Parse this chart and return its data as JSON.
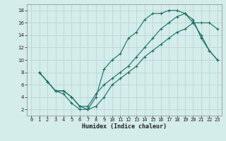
{
  "xlabel": "Humidex (Indice chaleur)",
  "bg_color": "#d4ecea",
  "grid_color": "#b8d8d5",
  "line_color": "#1a6e62",
  "xlim": [
    -0.5,
    23.5
  ],
  "ylim": [
    1,
    19
  ],
  "xticks": [
    0,
    1,
    2,
    3,
    4,
    5,
    6,
    7,
    8,
    9,
    10,
    11,
    12,
    13,
    14,
    15,
    16,
    17,
    18,
    19,
    20,
    21,
    22,
    23
  ],
  "yticks": [
    2,
    4,
    6,
    8,
    10,
    12,
    14,
    16,
    18
  ],
  "curve1_x": [
    1,
    2,
    3,
    4,
    5,
    6,
    7,
    8,
    9,
    10,
    11,
    12,
    13,
    14,
    15,
    16,
    17,
    18,
    19,
    20,
    21,
    22,
    23
  ],
  "curve1_y": [
    8,
    6.5,
    5,
    4.5,
    3,
    2,
    2,
    4,
    8.5,
    10,
    11,
    13.5,
    14.5,
    16.5,
    17.5,
    17.5,
    18,
    18,
    17.5,
    16,
    14,
    11.5,
    10
  ],
  "curve2_x": [
    1,
    2,
    3,
    4,
    5,
    6,
    7,
    8,
    9,
    10,
    11,
    12,
    13,
    14,
    15,
    16,
    17,
    18,
    19,
    20,
    21,
    22,
    23
  ],
  "curve2_y": [
    8,
    6.5,
    5,
    5,
    4,
    2.5,
    2,
    2.5,
    4,
    6,
    7,
    8,
    9,
    10.5,
    11.5,
    12.5,
    13.5,
    14.5,
    15,
    16,
    16,
    16,
    15
  ],
  "curve3_x": [
    1,
    2,
    3,
    4,
    5,
    6,
    7,
    8,
    9,
    10,
    11,
    12,
    13,
    14,
    15,
    16,
    17,
    18,
    19,
    20,
    21,
    22,
    23
  ],
  "curve3_y": [
    8,
    6.5,
    5,
    5,
    4,
    2.5,
    2.5,
    4.5,
    6,
    7,
    8,
    9,
    10.5,
    12,
    13.5,
    15,
    16,
    17,
    17.5,
    16.5,
    13.5,
    11.5,
    10
  ],
  "marker_size": 3,
  "linewidth": 0.8,
  "tick_fontsize": 5.0,
  "xlabel_fontsize": 6.0
}
